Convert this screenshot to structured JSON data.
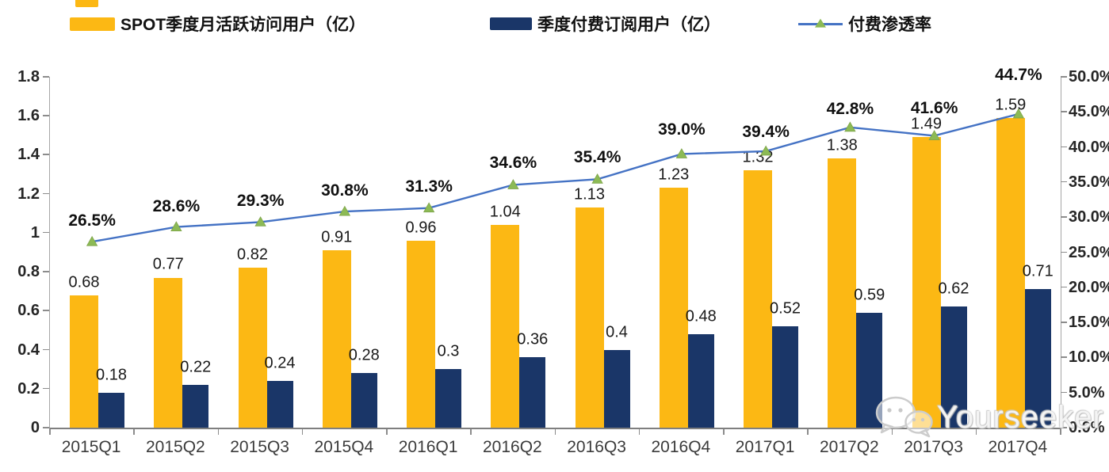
{
  "legend": {
    "items": [
      {
        "label": "SPOT季度月活跃访问用户（亿）",
        "swatch_color": "#FCB814",
        "type": "bar"
      },
      {
        "label": "季度付费订阅用户（亿）",
        "swatch_color": "#1A3668",
        "type": "bar"
      },
      {
        "label": "付费渗透率",
        "type": "line",
        "line_color": "#4472C4",
        "marker_color": "#8CBA55"
      }
    ]
  },
  "watermark": {
    "text": "Yourseeker",
    "icon": "wechat-icon"
  },
  "colors": {
    "mau_bar": "#FCB814",
    "subscriber_bar": "#1A3668",
    "penetration_line": "#4472C4",
    "penetration_marker": "#8CBA55",
    "axis": "#8c8c8c"
  },
  "chart_data": {
    "type": "combo",
    "categories": [
      "2015Q1",
      "2015Q2",
      "2015Q3",
      "2015Q4",
      "2016Q1",
      "2016Q2",
      "2016Q3",
      "2016Q4",
      "2017Q1",
      "2017Q2",
      "2017Q3",
      "2017Q4"
    ],
    "series": [
      {
        "name": "SPOT季度月活跃访问用户（亿）",
        "type": "bar",
        "axis": "left",
        "color": "#FCB814",
        "values": [
          0.68,
          0.77,
          0.82,
          0.91,
          0.96,
          1.04,
          1.13,
          1.23,
          1.32,
          1.38,
          1.49,
          1.59
        ],
        "labels": [
          "0.68",
          "0.77",
          "0.82",
          "0.91",
          "0.96",
          "1.04",
          "1.13",
          "1.23",
          "1.32",
          "1.38",
          "1.49",
          "1.59"
        ]
      },
      {
        "name": "季度付费订阅用户（亿）",
        "type": "bar",
        "axis": "left",
        "color": "#1A3668",
        "values": [
          0.18,
          0.22,
          0.24,
          0.28,
          0.3,
          0.36,
          0.4,
          0.48,
          0.52,
          0.59,
          0.62,
          0.71
        ],
        "labels": [
          "0.18",
          "0.22",
          "0.24",
          "0.28",
          "0.3",
          "0.36",
          "0.4",
          "0.48",
          "0.52",
          "0.59",
          "0.62",
          "0.71"
        ]
      },
      {
        "name": "付费渗透率",
        "type": "line",
        "axis": "right",
        "color": "#4472C4",
        "marker": "triangle",
        "marker_color": "#8CBA55",
        "values": [
          26.5,
          28.6,
          29.3,
          30.8,
          31.3,
          34.6,
          35.4,
          39.0,
          39.4,
          42.8,
          41.6,
          44.7
        ],
        "labels": [
          "26.5%",
          "28.6%",
          "29.3%",
          "30.8%",
          "31.3%",
          "34.6%",
          "35.4%",
          "39.0%",
          "39.4%",
          "42.8%",
          "41.6%",
          "44.7%"
        ]
      }
    ],
    "left_axis": {
      "min": 0,
      "max": 1.8,
      "step": 0.2,
      "ticks": [
        "0",
        "0.2",
        "0.4",
        "0.6",
        "0.8",
        "1",
        "1.2",
        "1.4",
        "1.6",
        "1.8"
      ]
    },
    "right_axis": {
      "min": 0,
      "max": 50,
      "step": 5,
      "ticks": [
        "0.0%",
        "5.0%",
        "10.0%",
        "15.0%",
        "20.0%",
        "25.0%",
        "30.0%",
        "35.0%",
        "40.0%",
        "45.0%",
        "50.0%"
      ]
    },
    "grid": false,
    "legend_position": "top"
  }
}
